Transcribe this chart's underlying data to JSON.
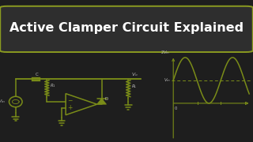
{
  "bg_color": "#1e1e1e",
  "title_text": "Active Clamper Circuit Explained",
  "title_color": "#ffffff",
  "title_bg": "#2e2e2e",
  "title_border": "#8a9a20",
  "circuit_color": "#7a8c18",
  "wave_color": "#7a8c18",
  "dashed_color": "#7a8c18",
  "label_color": "#bbbbbb",
  "title_fontsize": 11.5,
  "label_fontsize": 4.5
}
